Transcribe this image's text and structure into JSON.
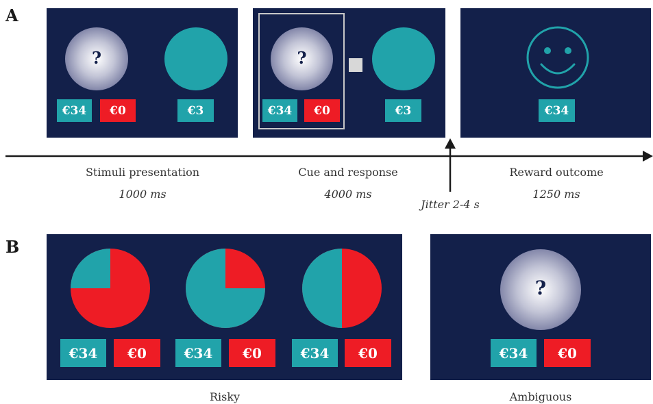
{
  "panels": {
    "a_label": "A",
    "b_label": "B"
  },
  "colors": {
    "screen_bg": "#13204a",
    "win": "#21a3aa",
    "lose": "#ee1c25",
    "text": "#333333"
  },
  "panel_a": {
    "screen1": {
      "unknown_mark": "?",
      "win_label": "€34",
      "lose_label": "€0",
      "sure_label": "€3"
    },
    "screen2": {
      "unknown_mark": "?",
      "win_label": "€34",
      "lose_label": "€0",
      "sure_label": "€3"
    },
    "screen3": {
      "icon": "smiley-face-icon",
      "outcome_label": "€34"
    },
    "phases": [
      {
        "name": "Stimuli presentation",
        "duration": "1000 ms"
      },
      {
        "name": "Cue and response",
        "duration": "4000 ms"
      },
      {
        "name": "Reward outcome",
        "duration": "1250 ms"
      }
    ],
    "jitter": "Jitter 2-4 s"
  },
  "panel_b": {
    "risky_options": [
      {
        "win_fraction": 0.25,
        "win_label": "€34",
        "lose_label": "€0"
      },
      {
        "win_fraction": 0.75,
        "win_label": "€34",
        "lose_label": "€0"
      },
      {
        "win_fraction": 0.5,
        "win_label": "€34",
        "lose_label": "€0"
      }
    ],
    "ambiguous": {
      "unknown_mark": "?",
      "win_label": "€34",
      "lose_label": "€0"
    },
    "risky_caption": "Risky",
    "ambiguous_caption": "Ambiguous"
  }
}
